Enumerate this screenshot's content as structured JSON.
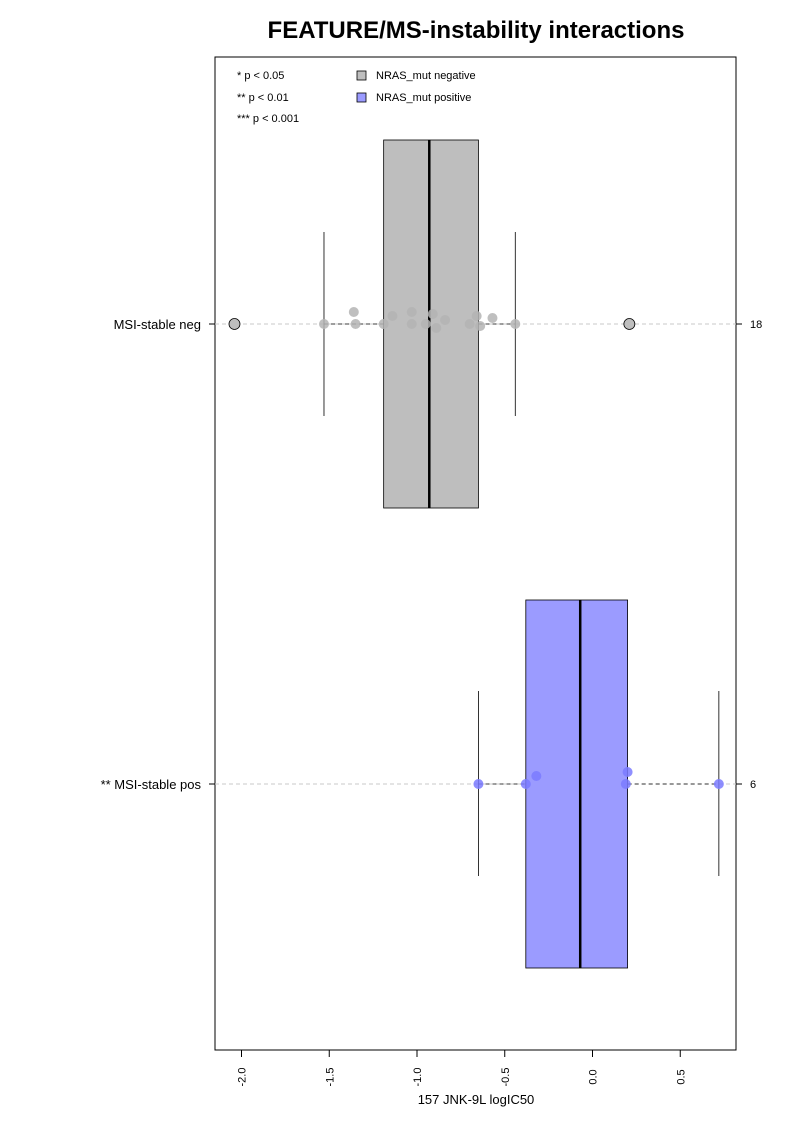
{
  "chart_data": {
    "type": "box",
    "orientation": "horizontal",
    "title": "FEATURE/MS-instability interactions",
    "xlabel": "157 JNK-9L logIC50",
    "xlim": [
      -2.15,
      0.85
    ],
    "xticks": [
      -2.0,
      -1.5,
      -1.0,
      -0.5,
      0.0,
      0.5
    ],
    "xtick_labels": [
      "-2.0",
      "-1.5",
      "-1.0",
      "-0.5",
      "0.0",
      "0.5"
    ],
    "grid": false,
    "significance_legend": [
      "* p < 0.05",
      "** p < 0.01",
      "*** p < 0.001"
    ],
    "legend_position": "top",
    "legend": [
      {
        "label": "NRAS_mut negative",
        "color": "#bebebe"
      },
      {
        "label": "NRAS_mut positive",
        "color": "#9b9bff"
      }
    ],
    "groups": [
      {
        "label": "MSI-stable neg",
        "n_label": "18",
        "color": "#bebebe",
        "point_color": "#b4b4b4",
        "q1": -1.19,
        "median": -0.93,
        "q3": -0.65,
        "whisker_low": -1.53,
        "whisker_high": -0.44,
        "points": [
          -1.53,
          -1.36,
          -1.35,
          -1.19,
          -1.14,
          -1.03,
          -1.03,
          -0.95,
          -0.91,
          -0.89,
          -0.84,
          -0.7,
          -0.66,
          -0.64,
          -0.57,
          -0.44
        ],
        "outliers": [
          -2.04,
          0.21
        ]
      },
      {
        "label": "** MSI-stable pos",
        "n_label": "6",
        "color": "#9b9bff",
        "point_color": "#7b7bff",
        "q1": -0.38,
        "median": -0.07,
        "q3": 0.2,
        "whisker_low": -0.65,
        "whisker_high": 0.72,
        "points": [
          -0.65,
          -0.38,
          -0.32,
          0.19,
          0.2,
          0.72
        ],
        "outliers": []
      }
    ]
  }
}
